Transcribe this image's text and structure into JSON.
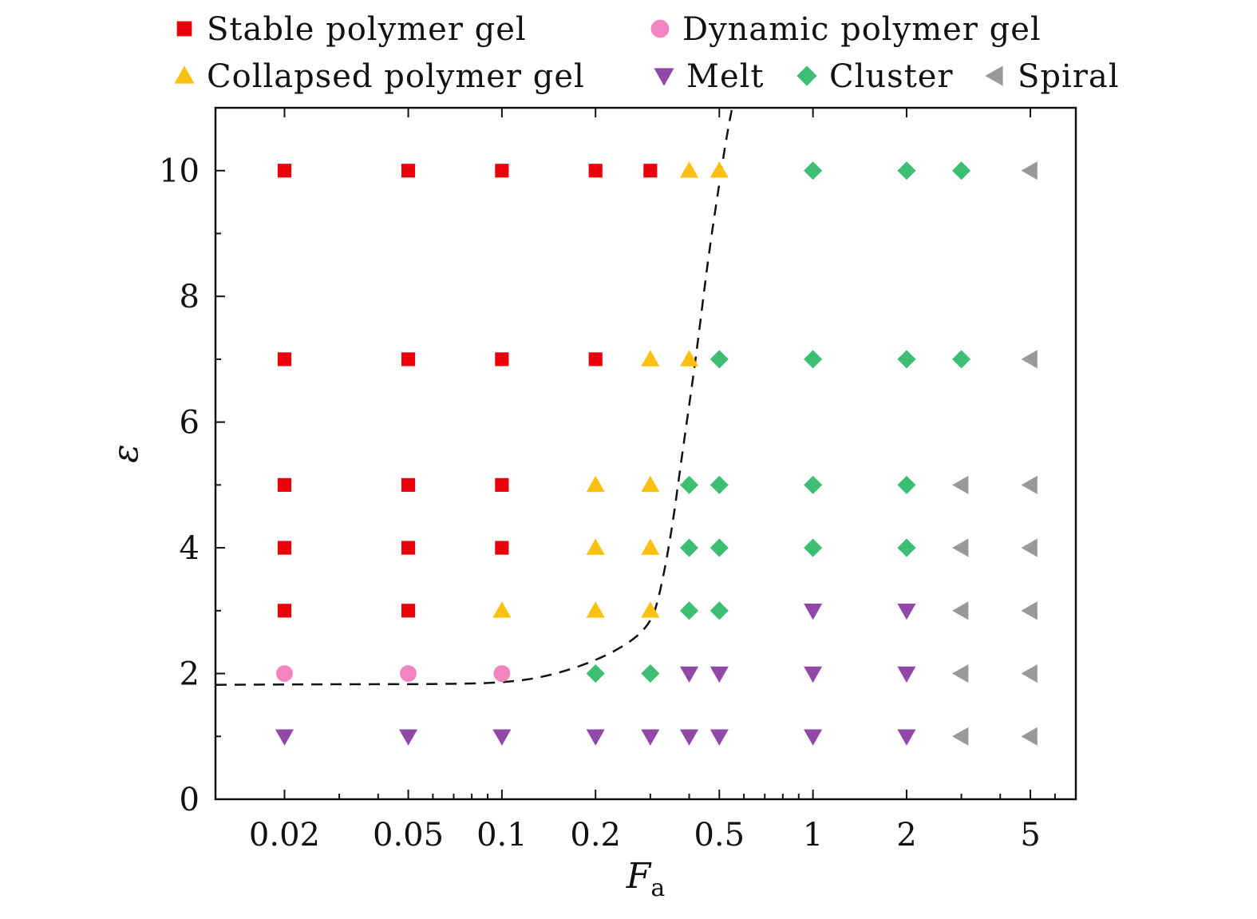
{
  "chart_data": {
    "type": "scatter",
    "xscale": "log",
    "xlim": [
      0.012,
      7
    ],
    "ylim": [
      0,
      11
    ],
    "xlabel": "F",
    "xlabel_sub": "a",
    "ylabel": "ε",
    "x_ticks": [
      {
        "v": 0.02,
        "label": "0.02"
      },
      {
        "v": 0.05,
        "label": "0.05"
      },
      {
        "v": 0.1,
        "label": "0.1"
      },
      {
        "v": 0.2,
        "label": "0.2"
      },
      {
        "v": 0.5,
        "label": "0.5"
      },
      {
        "v": 1,
        "label": "1"
      },
      {
        "v": 2,
        "label": "2"
      },
      {
        "v": 5,
        "label": "5"
      }
    ],
    "x_minor_ticks": [
      0.03,
      0.04,
      0.06,
      0.07,
      0.08,
      0.09,
      0.3,
      0.4,
      0.6,
      0.7,
      0.8,
      0.9,
      3,
      4,
      6
    ],
    "y_ticks": [
      {
        "v": 0,
        "label": "0"
      },
      {
        "v": 2,
        "label": "2"
      },
      {
        "v": 4,
        "label": "4"
      },
      {
        "v": 6,
        "label": "6"
      },
      {
        "v": 8,
        "label": "8"
      },
      {
        "v": 10,
        "label": "10"
      }
    ],
    "y_minor_ticks": [
      1,
      3,
      5,
      7,
      9
    ],
    "legend_position": "top",
    "series": [
      {
        "name": "Stable polymer gel",
        "marker": "square",
        "color": "#e8000b",
        "points": [
          [
            0.02,
            10
          ],
          [
            0.05,
            10
          ],
          [
            0.1,
            10
          ],
          [
            0.2,
            10
          ],
          [
            0.3,
            10
          ],
          [
            0.02,
            7
          ],
          [
            0.05,
            7
          ],
          [
            0.1,
            7
          ],
          [
            0.2,
            7
          ],
          [
            0.02,
            5
          ],
          [
            0.05,
            5
          ],
          [
            0.1,
            5
          ],
          [
            0.02,
            4
          ],
          [
            0.05,
            4
          ],
          [
            0.1,
            4
          ],
          [
            0.02,
            3
          ],
          [
            0.05,
            3
          ]
        ]
      },
      {
        "name": "Dynamic polymer gel",
        "marker": "circle",
        "color": "#f484c0",
        "points": [
          [
            0.02,
            2
          ],
          [
            0.05,
            2
          ],
          [
            0.1,
            2
          ]
        ]
      },
      {
        "name": "Collapsed polymer gel",
        "marker": "triangle-up",
        "color": "#fcc010",
        "points": [
          [
            0.4,
            10
          ],
          [
            0.5,
            10
          ],
          [
            0.3,
            7
          ],
          [
            0.4,
            7
          ],
          [
            0.2,
            5
          ],
          [
            0.3,
            5
          ],
          [
            0.2,
            4
          ],
          [
            0.3,
            4
          ],
          [
            0.1,
            3
          ],
          [
            0.2,
            3
          ],
          [
            0.3,
            3
          ]
        ]
      },
      {
        "name": "Melt",
        "marker": "triangle-down",
        "color": "#9148a8",
        "points": [
          [
            0.02,
            1
          ],
          [
            0.05,
            1
          ],
          [
            0.1,
            1
          ],
          [
            0.2,
            1
          ],
          [
            0.3,
            1
          ],
          [
            0.4,
            1
          ],
          [
            0.5,
            1
          ],
          [
            1,
            1
          ],
          [
            2,
            1
          ],
          [
            0.4,
            2
          ],
          [
            0.5,
            2
          ],
          [
            1,
            2
          ],
          [
            2,
            2
          ],
          [
            1,
            3
          ],
          [
            2,
            3
          ]
        ]
      },
      {
        "name": "Cluster",
        "marker": "diamond",
        "color": "#3cbf72",
        "points": [
          [
            1,
            10
          ],
          [
            2,
            10
          ],
          [
            3,
            10
          ],
          [
            0.5,
            7
          ],
          [
            1,
            7
          ],
          [
            2,
            7
          ],
          [
            3,
            7
          ],
          [
            0.4,
            5
          ],
          [
            0.5,
            5
          ],
          [
            1,
            5
          ],
          [
            2,
            5
          ],
          [
            0.4,
            4
          ],
          [
            0.5,
            4
          ],
          [
            1,
            4
          ],
          [
            2,
            4
          ],
          [
            0.4,
            3
          ],
          [
            0.5,
            3
          ],
          [
            0.2,
            2
          ],
          [
            0.3,
            2
          ]
        ]
      },
      {
        "name": "Spiral",
        "marker": "triangle-left",
        "color": "#999999",
        "points": [
          [
            5,
            10
          ],
          [
            5,
            7
          ],
          [
            3,
            5
          ],
          [
            5,
            5
          ],
          [
            3,
            4
          ],
          [
            5,
            4
          ],
          [
            3,
            3
          ],
          [
            5,
            3
          ],
          [
            3,
            2
          ],
          [
            5,
            2
          ],
          [
            3,
            1
          ],
          [
            5,
            1
          ]
        ]
      }
    ],
    "boundary_line": {
      "style": "dashed",
      "points": [
        [
          0.012,
          1.82
        ],
        [
          0.03,
          1.83
        ],
        [
          0.06,
          1.83
        ],
        [
          0.1,
          1.85
        ],
        [
          0.14,
          1.95
        ],
        [
          0.2,
          2.2
        ],
        [
          0.26,
          2.5
        ],
        [
          0.3,
          2.8
        ],
        [
          0.32,
          3.2
        ],
        [
          0.35,
          4.2
        ],
        [
          0.38,
          5.5
        ],
        [
          0.42,
          7.0
        ],
        [
          0.46,
          8.6
        ],
        [
          0.5,
          9.8
        ],
        [
          0.53,
          10.6
        ],
        [
          0.56,
          11.2
        ]
      ]
    }
  }
}
